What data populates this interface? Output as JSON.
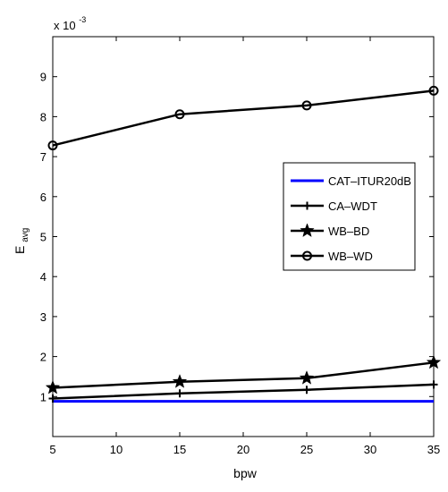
{
  "chart_data": {
    "type": "line",
    "title": "",
    "xlabel": "bpw",
    "ylabel_main": "E",
    "ylabel_sub": "avg",
    "y_multiplier_base": "x 10",
    "y_multiplier_exp": "-3",
    "xlim": [
      5,
      35
    ],
    "ylim": [
      0,
      10
    ],
    "x_ticks": [
      5,
      10,
      15,
      20,
      25,
      30,
      35
    ],
    "y_ticks": [
      1,
      2,
      3,
      4,
      5,
      6,
      7,
      8,
      9
    ],
    "grid": false,
    "legend_position": "right",
    "x": [
      5,
      15,
      25,
      35
    ],
    "series": [
      {
        "name": "CAT–ITUR20dB",
        "values": [
          0.88,
          0.88,
          0.88,
          0.88
        ],
        "color": "#0000ff",
        "marker": "none"
      },
      {
        "name": "CA–WDT",
        "values": [
          0.95,
          1.08,
          1.17,
          1.3
        ],
        "color": "#000000",
        "marker": "plus"
      },
      {
        "name": "WB–BD",
        "values": [
          1.22,
          1.37,
          1.46,
          1.85
        ],
        "color": "#000000",
        "marker": "star"
      },
      {
        "name": "WB–WD",
        "values": [
          7.28,
          8.06,
          8.28,
          8.65
        ],
        "color": "#000000",
        "marker": "circle"
      }
    ]
  }
}
